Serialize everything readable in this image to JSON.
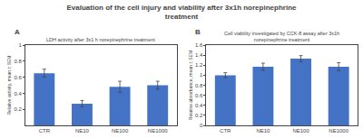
{
  "title": "Evaluation of the cell injury and viability after 3x1h norepinephrine\ntreatment",
  "chart_data": [
    {
      "type": "bar",
      "label": "A",
      "subtitle": "LDH activity after 3x1 h norepinephrine treatment",
      "ylabel": "Relative activity, mean ± SEM",
      "categories": [
        "CTR",
        "NE10",
        "NE100",
        "NE1000"
      ],
      "values": [
        0.65,
        0.27,
        0.48,
        0.5
      ],
      "errors": [
        0.05,
        0.04,
        0.07,
        0.05
      ],
      "color": "#4472C4",
      "ylim": [
        0,
        1.0
      ],
      "yticks": [
        0.2,
        0.4,
        0.6,
        0.8,
        1
      ],
      "grid": false
    },
    {
      "type": "bar",
      "label": "B",
      "subtitle": "Cell viability investigated by CCK-8 assay after 3x1h\nnorepinephrine treatment",
      "ylabel": "Relative absorbance, mean ± SEM",
      "categories": [
        "CTR",
        "NE10",
        "NE100",
        "NE1000"
      ],
      "values": [
        1.0,
        1.17,
        1.33,
        1.17
      ],
      "errors": [
        0.05,
        0.07,
        0.06,
        0.08
      ],
      "color": "#4472C4",
      "ylim": [
        0,
        1.6
      ],
      "yticks": [
        0,
        0.2,
        0.4,
        0.6,
        0.8,
        1,
        1.2,
        1.4,
        1.6
      ],
      "grid": false
    }
  ]
}
